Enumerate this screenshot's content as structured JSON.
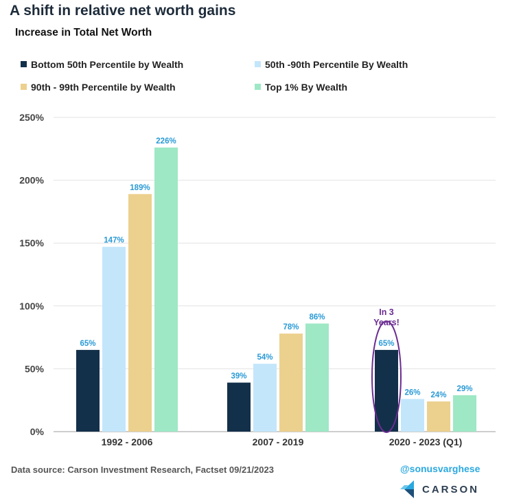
{
  "title": "A shift in relative net worth gains",
  "subtitle": "Increase in Total Net Worth",
  "source": "Data source: Carson Investment Research, Factset   09/21/2023",
  "handle": "@sonusvarghese",
  "brand": "CARSON",
  "annotation": "In 3 Years!",
  "chart_data": {
    "type": "bar",
    "categories": [
      "1992 - 2006",
      "2007 - 2019",
      "2020 - 2023 (Q1)"
    ],
    "series": [
      {
        "name": "Bottom 50th Percentile by Wealth",
        "values": [
          65,
          39,
          65
        ],
        "labels": [
          "65%",
          "39%",
          "65%"
        ],
        "color": "#13304a"
      },
      {
        "name": "50th -90th Percentile By Wealth",
        "values": [
          147,
          54,
          26
        ],
        "labels": [
          "147%",
          "54%",
          "26%"
        ],
        "color": "#c3e6fb"
      },
      {
        "name": "90th - 99th Percentile by Wealth",
        "values": [
          189,
          78,
          24
        ],
        "labels": [
          "189%",
          "78%",
          "24%"
        ],
        "color": "#ecd08e"
      },
      {
        "name": "Top 1% By Wealth",
        "values": [
          226,
          86,
          29
        ],
        "labels": [
          "226%",
          "86%",
          "29%"
        ],
        "color": "#9ee8c5"
      }
    ],
    "ylim": [
      0,
      250
    ],
    "yticks": [
      0,
      50,
      100,
      150,
      200,
      250
    ],
    "ytick_labels": [
      "0%",
      "50%",
      "100%",
      "150%",
      "200%",
      "250%"
    ],
    "grid": true,
    "legend_position": "top",
    "label_color": "#2a9ad6",
    "annotation_color": "#6b2c91"
  }
}
